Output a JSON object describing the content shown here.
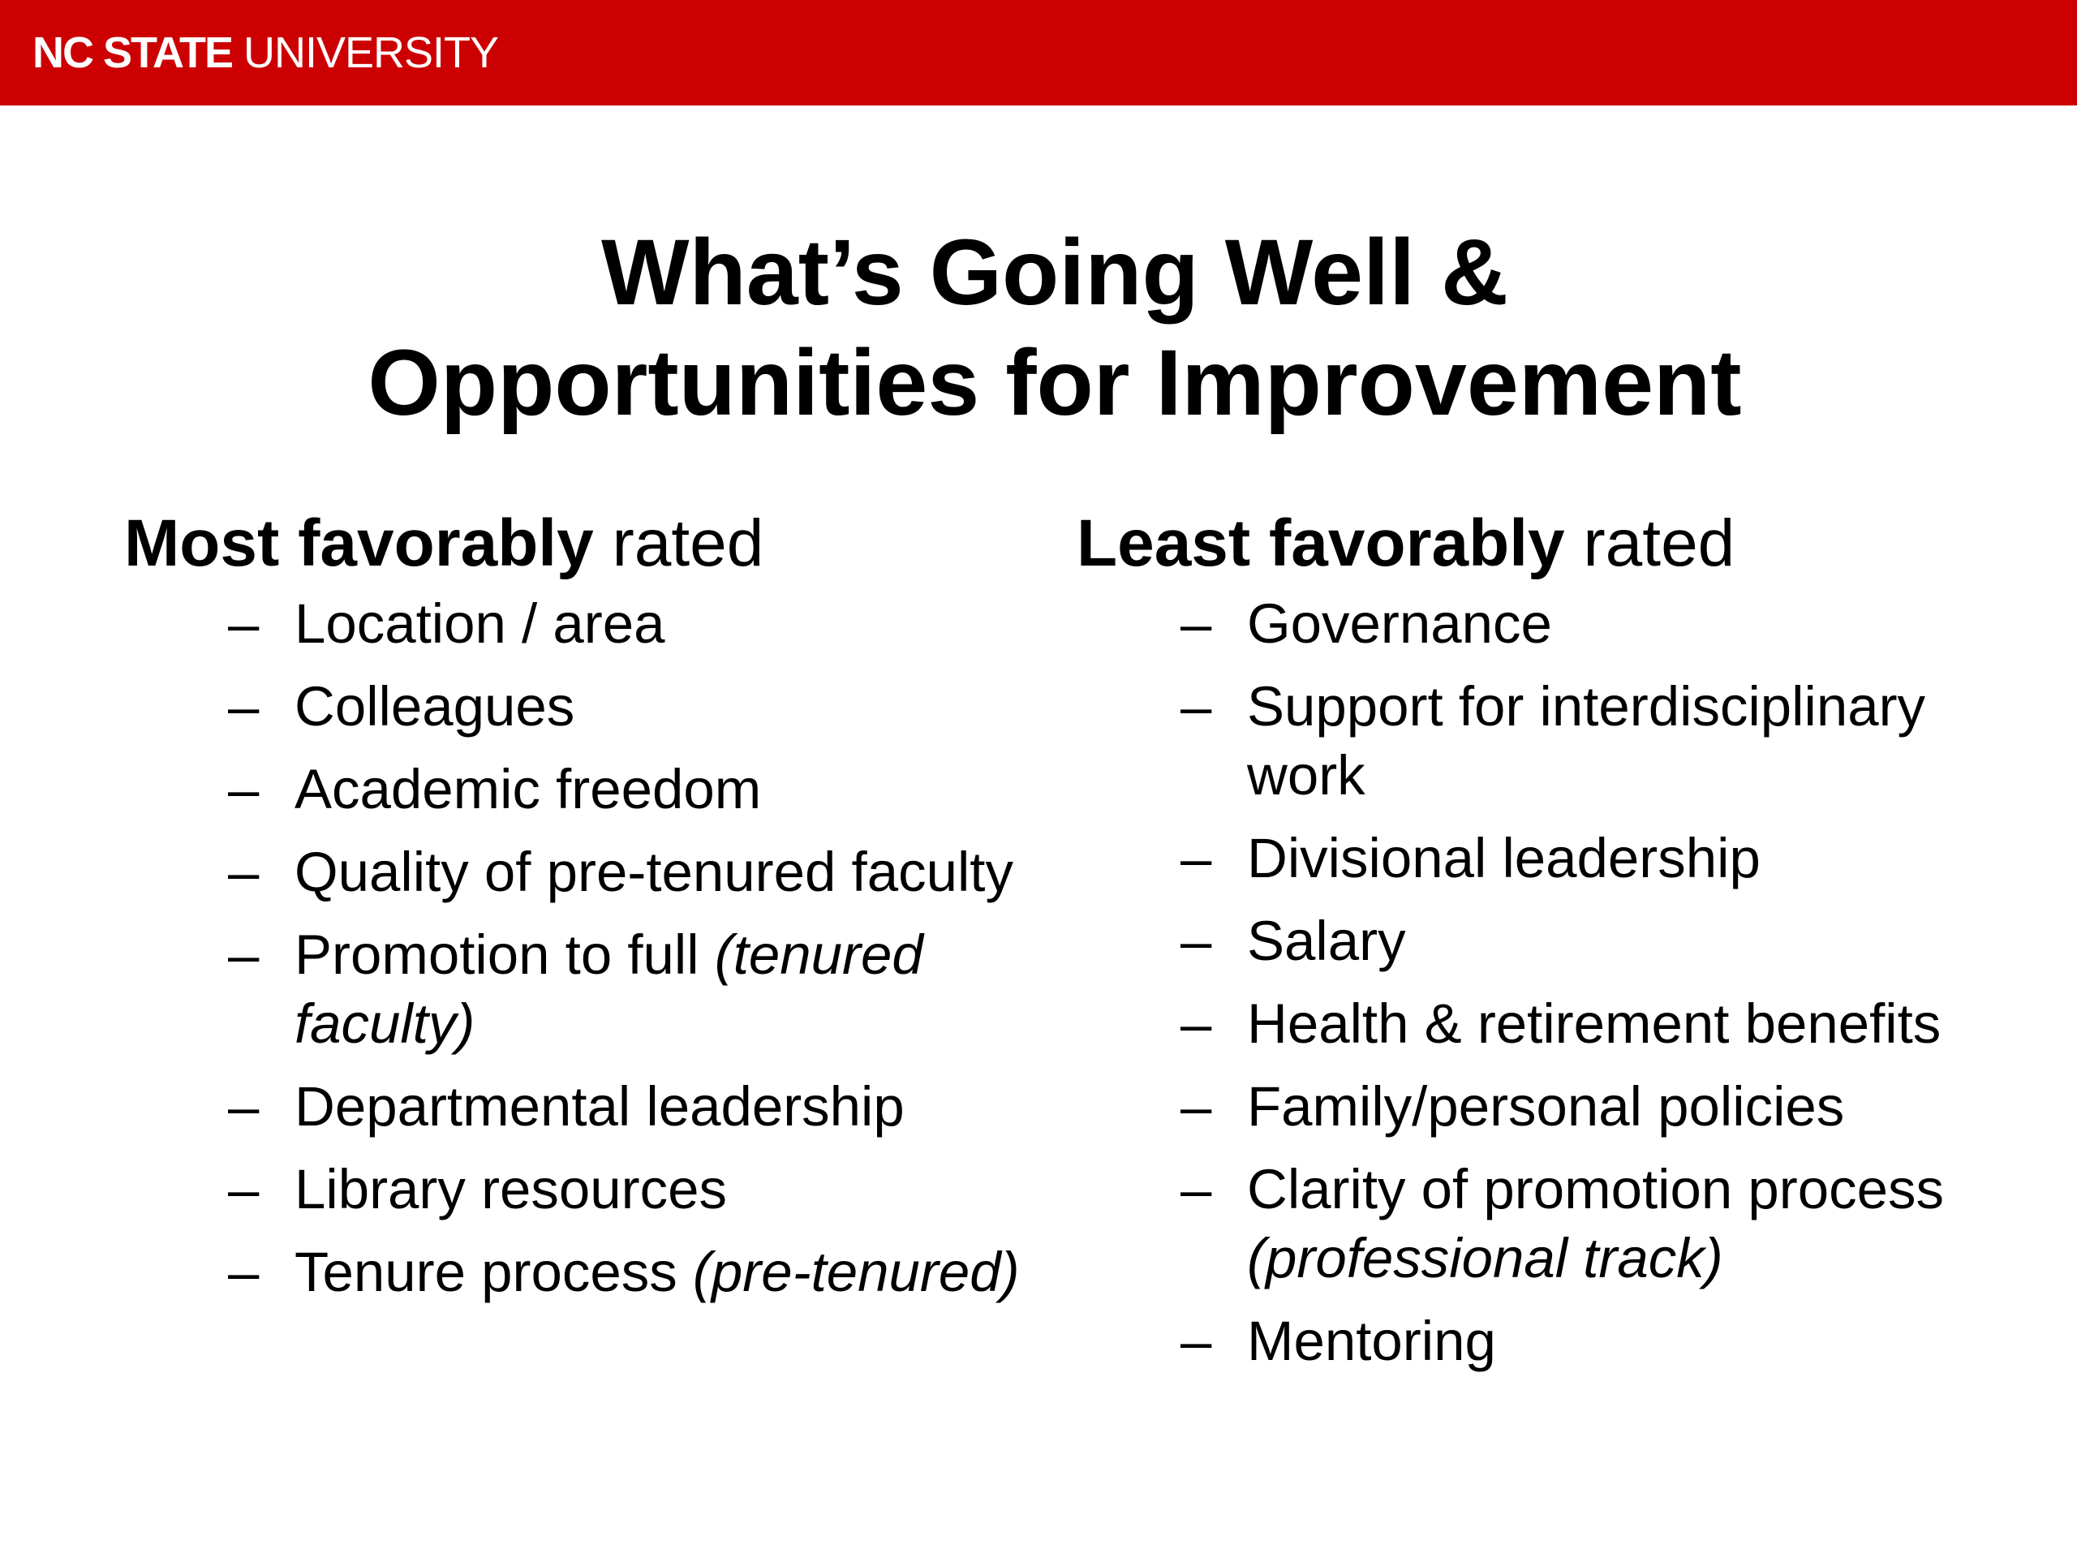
{
  "header": {
    "brand_bold": "NC STATE",
    "brand_regular": " UNIVERSITY",
    "background_color": "#cc0000"
  },
  "slide": {
    "title_line1": "What’s Going Well &",
    "title_line2": "Opportunities for Improvement"
  },
  "left_column": {
    "heading_bold": "Most favorably",
    "heading_regular": " rated",
    "items": [
      {
        "text": "Location / area",
        "note": ""
      },
      {
        "text": "Colleagues",
        "note": ""
      },
      {
        "text": "Academic freedom",
        "note": ""
      },
      {
        "text": "Quality of pre-tenured faculty",
        "note": ""
      },
      {
        "text": "Promotion to full ",
        "note": "(tenured faculty)"
      },
      {
        "text": "Departmental leadership",
        "note": ""
      },
      {
        "text": "Library resources",
        "note": ""
      },
      {
        "text": "Tenure process ",
        "note": "(pre-tenured)"
      }
    ]
  },
  "right_column": {
    "heading_bold": "Least favorably",
    "heading_regular": " rated",
    "items": [
      {
        "text": "Governance",
        "note": ""
      },
      {
        "text": "Support for interdisciplinary work",
        "note": ""
      },
      {
        "text": "Divisional leadership",
        "note": ""
      },
      {
        "text": "Salary",
        "note": ""
      },
      {
        "text": "Health & retirement benefits",
        "note": ""
      },
      {
        "text": "Family/personal policies",
        "note": ""
      },
      {
        "text": "Clarity of promotion process ",
        "note": "(professional track)"
      },
      {
        "text": "Mentoring",
        "note": ""
      }
    ]
  },
  "bullet_glyph": "–"
}
